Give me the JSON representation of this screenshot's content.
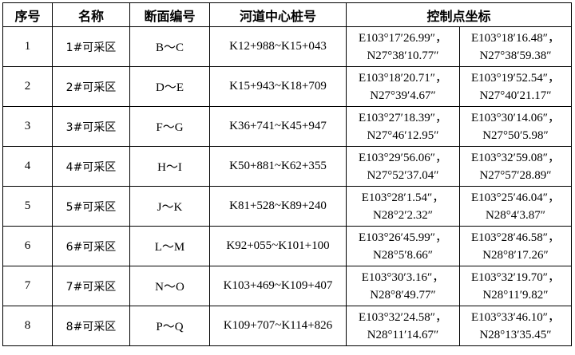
{
  "headers": [
    "序号",
    "名称",
    "断面编号",
    "河道中心桩号",
    "控制点坐标"
  ],
  "rows": [
    {
      "no": "1",
      "name": "1#可采区",
      "section": "B～C",
      "stake": "K12+988~K15+043",
      "p1e": "E103°17′26.99″，",
      "p1n": "N27°38′10.77″",
      "p2e": "E103°18′16.48″，",
      "p2n": "N27°38′59.38″"
    },
    {
      "no": "2",
      "name": "2#可采区",
      "section": "D～E",
      "stake": "K15+943~K18+709",
      "p1e": "E103°18′20.71″，",
      "p1n": "N27°39′4.67″",
      "p2e": "E103°19′52.54″，",
      "p2n": "N27°40′21.17″"
    },
    {
      "no": "3",
      "name": "3#可采区",
      "section": "F～G",
      "stake": "K36+741~K45+947",
      "p1e": "E103°27′18.39″，",
      "p1n": "N27°46′12.95″",
      "p2e": "E103°30′14.06″，",
      "p2n": "N27°50′5.98″"
    },
    {
      "no": "4",
      "name": "4#可采区",
      "section": "H～I",
      "stake": "K50+881~K62+355",
      "p1e": "E103°29′56.06″，",
      "p1n": "N27°52′37.04″",
      "p2e": "E103°32′59.08″，",
      "p2n": "N27°57′28.89″"
    },
    {
      "no": "5",
      "name": "5#可采区",
      "section": "J～K",
      "stake": "K81+528~K89+240",
      "p1e": "E103°28′1.54″，",
      "p1n": "N28°2′2.32″",
      "p2e": "E103°25′46.04″，",
      "p2n": "N28°4′3.87″"
    },
    {
      "no": "6",
      "name": "6#可采区",
      "section": "L～M",
      "stake": "K92+055~K101+100",
      "p1e": "E103°26′45.99″，",
      "p1n": "N28°5′8.66″",
      "p2e": "E103°28′46.58″，",
      "p2n": "N28°8′17.26″"
    },
    {
      "no": "7",
      "name": "7#可采区",
      "section": "N～O",
      "stake": "K103+469~K109+407",
      "p1e": "E103°30′3.16″，",
      "p1n": "N28°8′49.77″",
      "p2e": "E103°32′19.70″，",
      "p2n": "N28°11′9.82″"
    },
    {
      "no": "8",
      "name": "8#可采区",
      "section": "P～Q",
      "stake": "K109+707~K114+826",
      "p1e": "E103°32′24.58″，",
      "p1n": "N28°11′14.67″",
      "p2e": "E103°33′46.10″，",
      "p2n": "N28°13′35.45″"
    }
  ]
}
